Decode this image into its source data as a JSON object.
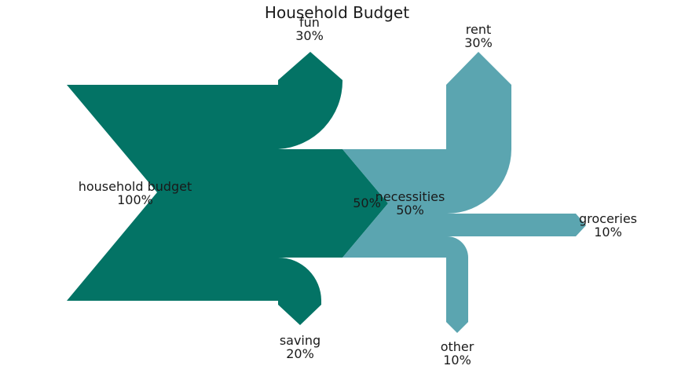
{
  "title": "Household Budget",
  "colors": {
    "primary": "#037365",
    "secondary": "#5ba5b0"
  },
  "chart_data": {
    "type": "sankey",
    "title": "Household Budget",
    "diagrams": [
      {
        "name": "household budget",
        "flows": [
          {
            "label": "household budget",
            "value": "100%",
            "amount": 1.0
          },
          {
            "label": "fun",
            "value": "30%",
            "amount": -0.3
          },
          {
            "label": "saving",
            "value": "20%",
            "amount": -0.2
          },
          {
            "label": "",
            "value": "50%",
            "amount": -0.5
          }
        ]
      },
      {
        "name": "necessities",
        "flows": [
          {
            "label": "necessities",
            "value": "50%",
            "amount": 0.5
          },
          {
            "label": "rent",
            "value": "30%",
            "amount": -0.3
          },
          {
            "label": "groceries",
            "value": "10%",
            "amount": -0.1
          },
          {
            "label": "other",
            "value": "10%",
            "amount": -0.1
          }
        ]
      }
    ]
  },
  "labels": {
    "budget": {
      "name": "household budget",
      "value": "100%"
    },
    "fun": {
      "name": "fun",
      "value": "30%"
    },
    "saving": {
      "name": "saving",
      "value": "20%"
    },
    "outflow": {
      "value": "50%"
    },
    "necessities": {
      "name": "necessities",
      "value": "50%"
    },
    "rent": {
      "name": "rent",
      "value": "30%"
    },
    "groceries": {
      "name": "groceries",
      "value": "10%"
    },
    "other": {
      "name": "other",
      "value": "10%"
    }
  }
}
